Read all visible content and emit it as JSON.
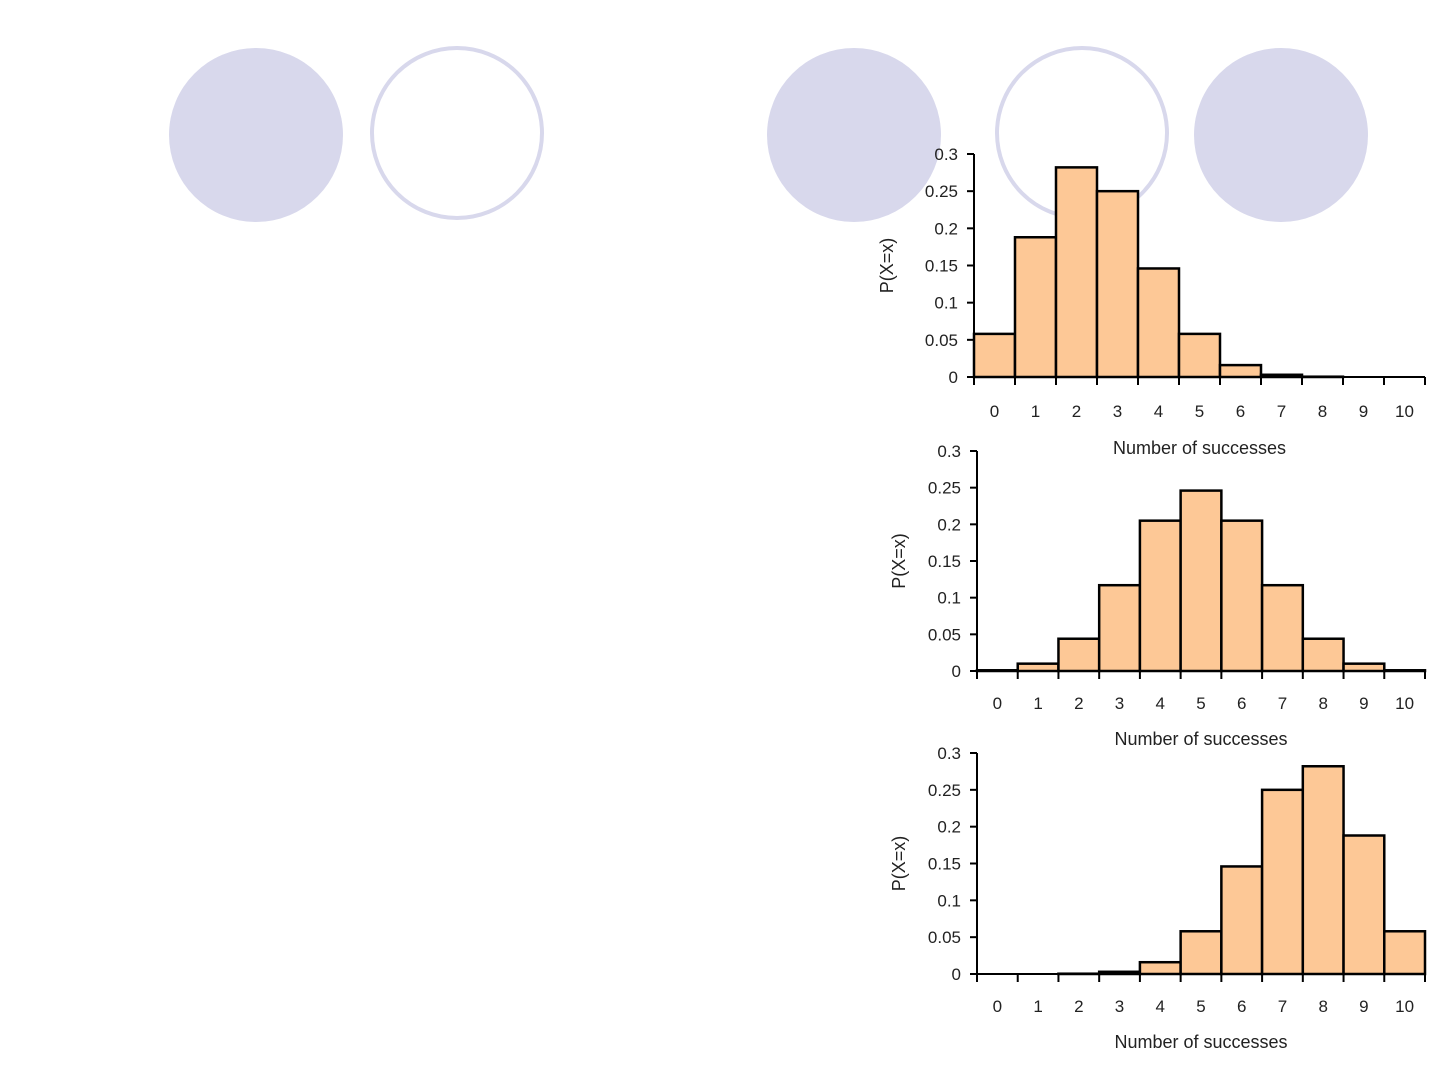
{
  "decorations": {
    "circles": [
      {
        "name": "decor-circle-1",
        "style": "filled",
        "color": "#d8d8ec"
      },
      {
        "name": "decor-circle-2",
        "style": "outline",
        "color": "#d8d8ec"
      },
      {
        "name": "decor-circle-3",
        "style": "filled",
        "color": "#d8d8ec"
      },
      {
        "name": "decor-circle-4",
        "style": "outline",
        "color": "#d8d8ec"
      },
      {
        "name": "decor-circle-5",
        "style": "filled",
        "color": "#d8d8ec"
      }
    ]
  },
  "chart_data": [
    {
      "type": "bar",
      "title": "",
      "xlabel": "Number of successes",
      "ylabel": "P(X=x)",
      "categories": [
        "0",
        "1",
        "2",
        "3",
        "4",
        "5",
        "6",
        "7",
        "8",
        "9",
        "10"
      ],
      "values": [
        0.058,
        0.188,
        0.282,
        0.25,
        0.146,
        0.058,
        0.016,
        0.003,
        0.0004,
        0.0,
        0.0
      ],
      "ylim": [
        0,
        0.3
      ],
      "yticks": [
        "0",
        "0.05",
        "0.1",
        "0.15",
        "0.2",
        "0.25",
        "0.3"
      ],
      "bar_color": "#fdc896",
      "grid": false
    },
    {
      "type": "bar",
      "title": "",
      "xlabel": "Number of successes",
      "ylabel": "P(X=x)",
      "categories": [
        "0",
        "1",
        "2",
        "3",
        "4",
        "5",
        "6",
        "7",
        "8",
        "9",
        "10"
      ],
      "values": [
        0.001,
        0.01,
        0.044,
        0.117,
        0.205,
        0.246,
        0.205,
        0.117,
        0.044,
        0.01,
        0.001
      ],
      "ylim": [
        0,
        0.3
      ],
      "yticks": [
        "0",
        "0.05",
        "0.1",
        "0.15",
        "0.2",
        "0.25",
        "0.3"
      ],
      "bar_color": "#fdc896",
      "grid": false
    },
    {
      "type": "bar",
      "title": "",
      "xlabel": "Number of successes",
      "ylabel": "P(X=x)",
      "categories": [
        "0",
        "1",
        "2",
        "3",
        "4",
        "5",
        "6",
        "7",
        "8",
        "9",
        "10"
      ],
      "values": [
        0.0,
        0.0,
        0.0004,
        0.003,
        0.016,
        0.058,
        0.146,
        0.25,
        0.282,
        0.188,
        0.058
      ],
      "ylim": [
        0,
        0.3
      ],
      "yticks": [
        "0",
        "0.05",
        "0.1",
        "0.15",
        "0.2",
        "0.25",
        "0.3"
      ],
      "bar_color": "#fdc896",
      "grid": false
    }
  ]
}
